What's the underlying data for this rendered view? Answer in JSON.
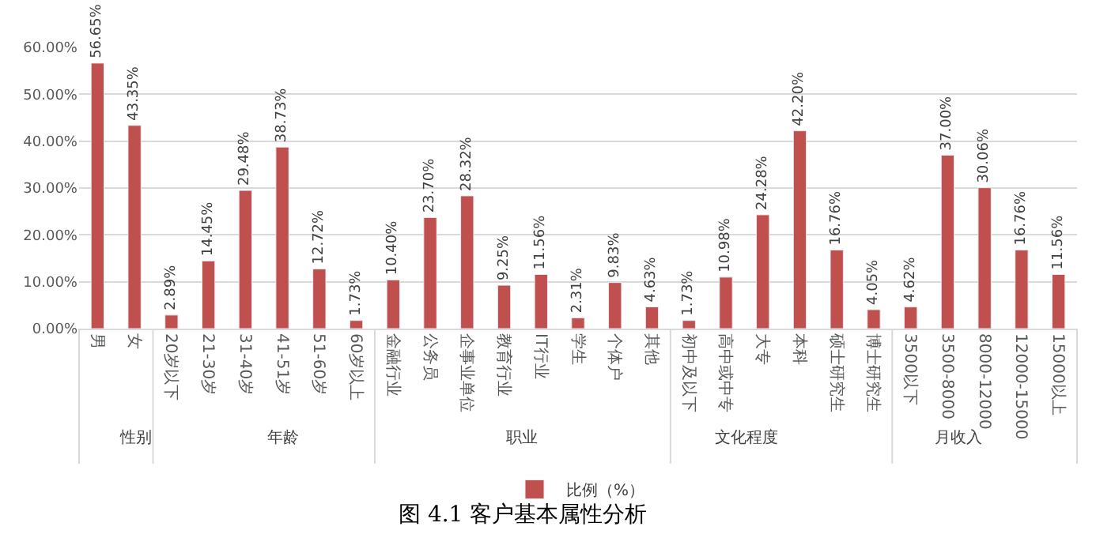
{
  "chart_data": [
    {
      "type": "bar",
      "xlabel": "性别",
      "categories": [
        "男",
        "女"
      ],
      "series": [
        {
          "name": "比例（%）",
          "color": "#c0504d",
          "values": [
            56.65,
            43.35
          ]
        }
      ],
      "value_labels": [
        "56.65%",
        "43.35%"
      ],
      "ylim": [
        0,
        60
      ],
      "yticks": [
        {
          "value": 0,
          "label": "0.00%"
        },
        {
          "value": 10,
          "label": "10.00%"
        },
        {
          "value": 20,
          "label": "20.00%"
        },
        {
          "value": 30,
          "label": "30.00%"
        },
        {
          "value": 40,
          "label": "40.00%"
        },
        {
          "value": 50,
          "label": "50.00%"
        },
        {
          "value": 60,
          "label": "60.00%"
        }
      ],
      "grid": "y",
      "legend": "bottom"
    },
    {
      "type": "bar",
      "xlabel": "年龄",
      "categories": [
        "20岁以下",
        "21-30岁",
        "31-40岁",
        "41-51岁",
        "51-60岁",
        "60岁以上"
      ],
      "series": [
        {
          "color": "#c0504d",
          "values": [
            2.89,
            14.45,
            29.48,
            38.73,
            12.72,
            1.73
          ]
        }
      ],
      "value_labels": [
        "2.89%",
        "14.45%",
        "29.48%",
        "38.73%",
        "12.72%",
        "1.73%"
      ],
      "ylim": [
        0,
        60
      ],
      "yticks": [
        {
          "value": 0,
          "label": null
        },
        {
          "value": 10,
          "label": null
        },
        {
          "value": 20,
          "label": null
        },
        {
          "value": 30,
          "label": null
        },
        {
          "value": 40,
          "label": null
        },
        {
          "value": 50,
          "label": null
        },
        {
          "value": 60,
          "label": null
        }
      ],
      "tick_labels": "x",
      "grid": "y"
    },
    {
      "type": "bar",
      "xlabel": "职业",
      "annotations": [
        "图 4.1 客户基本属性分析"
      ],
      "categories": [
        "金融行业",
        "公务员",
        "企事业单位",
        "教育行业",
        "IT行业",
        "学生",
        "个体户",
        "其他"
      ],
      "series": [
        {
          "color": "#c0504d",
          "values": [
            10.4,
            23.7,
            28.32,
            9.25,
            11.56,
            2.31,
            9.83,
            4.63
          ]
        }
      ],
      "value_labels": [
        "10.40%",
        "23.70%",
        "28.32%",
        "9.25%",
        "11.56%",
        "2.31%",
        "9.83%",
        "4.63%"
      ],
      "ylim": [
        0,
        60
      ],
      "yticks": [
        {
          "value": 0,
          "label": null
        },
        {
          "value": 10,
          "label": null
        },
        {
          "value": 20,
          "label": null
        },
        {
          "value": 30,
          "label": null
        },
        {
          "value": 40,
          "label": null
        },
        {
          "value": 50,
          "label": null
        },
        {
          "value": 60,
          "label": null
        }
      ],
      "tick_labels": "x",
      "grid": "y"
    },
    {
      "type": "bar",
      "xlabel": "文化程度",
      "categories": [
        "初中及以下",
        "高中或中专",
        "大专",
        "本科",
        "硕士研究生",
        "博士研究生"
      ],
      "series": [
        {
          "color": "#c0504d",
          "values": [
            1.73,
            10.98,
            24.28,
            42.2,
            16.76,
            4.05
          ]
        }
      ],
      "value_labels": [
        "1.73%",
        "10.98%",
        "24.28%",
        "42.20%",
        "16.76%",
        "4.05%"
      ],
      "ylim": [
        0,
        60
      ],
      "yticks": [
        {
          "value": 0,
          "label": null
        },
        {
          "value": 10,
          "label": null
        },
        {
          "value": 20,
          "label": null
        },
        {
          "value": 30,
          "label": null
        },
        {
          "value": 40,
          "label": null
        },
        {
          "value": 50,
          "label": null
        },
        {
          "value": 60,
          "label": null
        }
      ],
      "tick_labels": "x",
      "grid": "y"
    },
    {
      "type": "bar",
      "xlabel": "月收入",
      "categories": [
        "3500以下",
        "3500-8000",
        "8000-12000",
        "12000-15000",
        "15000以上"
      ],
      "series": [
        {
          "color": "#c0504d",
          "values": [
            4.62,
            37.0,
            30.06,
            16.76,
            11.56
          ]
        }
      ],
      "value_labels": [
        "4.62%",
        "37.00%",
        "30.06%",
        "16.76%",
        "11.56%"
      ],
      "ylim": [
        0,
        60
      ],
      "yticks": [
        {
          "value": 0,
          "label": null
        },
        {
          "value": 10,
          "label": null
        },
        {
          "value": 20,
          "label": null
        },
        {
          "value": 30,
          "label": null
        },
        {
          "value": 40,
          "label": null
        },
        {
          "value": 50,
          "label": null
        },
        {
          "value": 60,
          "label": null
        }
      ],
      "tick_labels": "x",
      "grid": "y"
    }
  ]
}
